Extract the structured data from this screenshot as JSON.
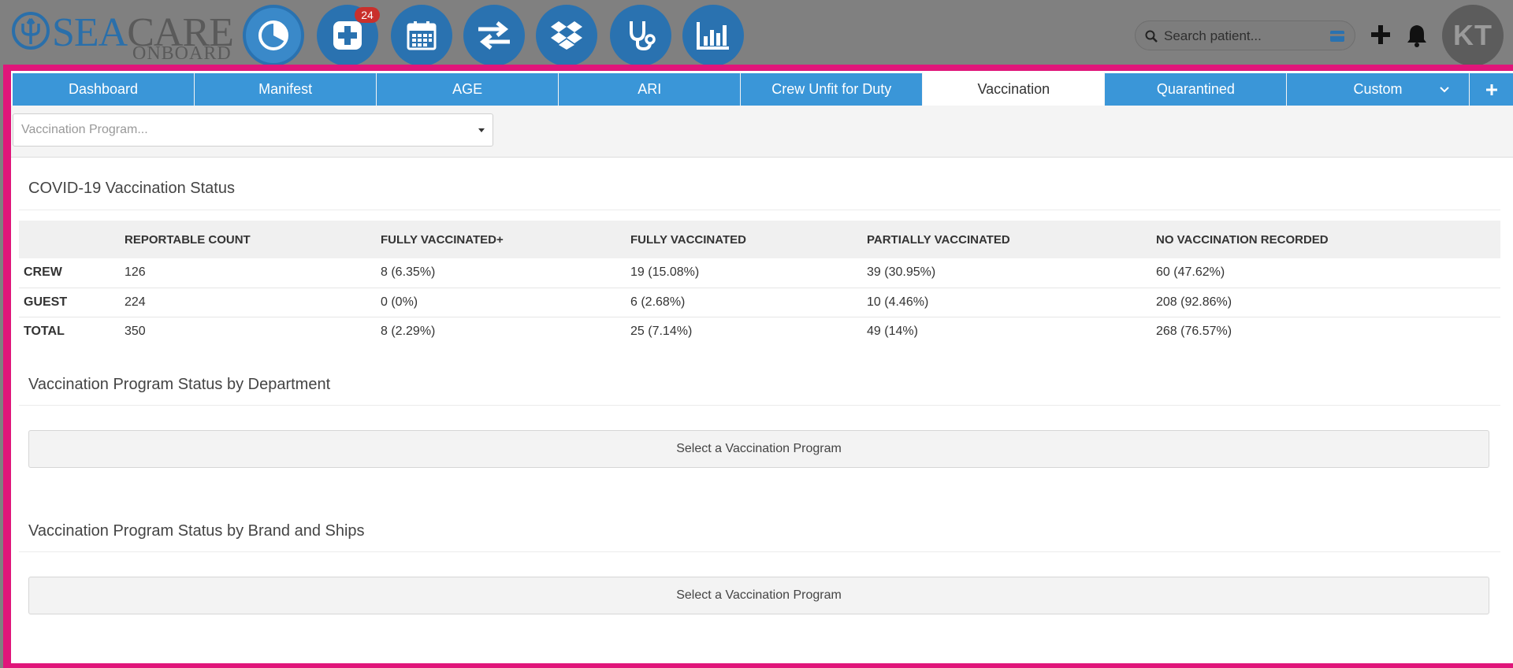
{
  "header": {
    "logo": {
      "sea": "SEA",
      "care": "CARE",
      "onboard": "ONBOARD"
    },
    "nav_icons": [
      {
        "name": "dashboard-pie-icon"
      },
      {
        "name": "medical-cross-icon",
        "badge": "24"
      },
      {
        "name": "calendar-icon"
      },
      {
        "name": "transfer-arrows-icon"
      },
      {
        "name": "dropbox-icon"
      },
      {
        "name": "stethoscope-icon"
      },
      {
        "name": "bar-chart-icon"
      }
    ],
    "search": {
      "placeholder": "Search patient..."
    },
    "avatar_initials": "KT"
  },
  "tabs": [
    {
      "label": "Dashboard"
    },
    {
      "label": "Manifest"
    },
    {
      "label": "AGE"
    },
    {
      "label": "ARI"
    },
    {
      "label": "Crew Unfit for Duty"
    },
    {
      "label": "Vaccination",
      "active": true
    },
    {
      "label": "Quarantined"
    },
    {
      "label": "Custom"
    },
    {
      "label": "+"
    }
  ],
  "filter": {
    "placeholder": "Vaccination Program..."
  },
  "covid": {
    "title": "COVID-19 Vaccination Status",
    "columns": [
      "",
      "REPORTABLE COUNT",
      "FULLY VACCINATED+",
      "FULLY VACCINATED",
      "PARTIALLY VACCINATED",
      "NO VACCINATION RECORDED"
    ],
    "rows": [
      [
        "CREW",
        "126",
        "8 (6.35%)",
        "19 (15.08%)",
        "39 (30.95%)",
        "60 (47.62%)"
      ],
      [
        "GUEST",
        "224",
        "0 (0%)",
        "6 (2.68%)",
        "10 (4.46%)",
        "208 (92.86%)"
      ],
      [
        "TOTAL",
        "350",
        "8 (2.29%)",
        "25 (7.14%)",
        "49 (14%)",
        "268 (76.57%)"
      ]
    ]
  },
  "department": {
    "title": "Vaccination Program Status by Department",
    "placeholder": "Select a Vaccination Program"
  },
  "brand": {
    "title": "Vaccination Program Status by Brand and Ships",
    "placeholder": "Select a Vaccination Program"
  },
  "colors": {
    "tab_blue": "#3a96d8",
    "nav_blue": "#2a72b0",
    "highlight": "#e0157a",
    "badge_red": "#c9302c"
  }
}
